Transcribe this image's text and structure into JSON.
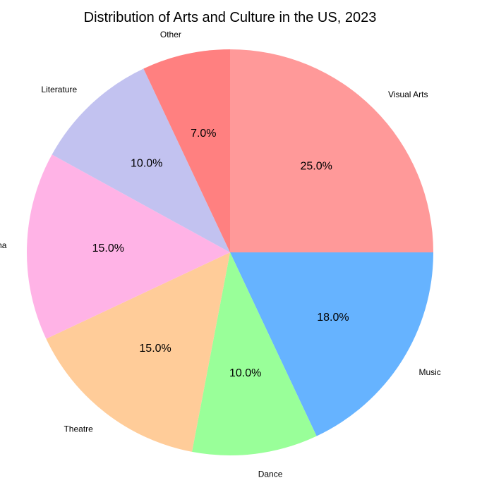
{
  "chart_data": {
    "type": "pie",
    "title": "Distribution of Arts and Culture in the US, 2023",
    "categories": [
      "Visual Arts",
      "Music",
      "Dance",
      "Theatre",
      "Cinema",
      "Literature",
      "Other"
    ],
    "values": [
      25.0,
      18.0,
      10.0,
      15.0,
      15.0,
      10.0,
      7.0
    ],
    "percent_labels": [
      "25.0%",
      "18.0%",
      "10.0%",
      "15.0%",
      "15.0%",
      "10.0%",
      "7.0%"
    ],
    "colors": [
      "#ff9999",
      "#66b3ff",
      "#99ff99",
      "#ffcc99",
      "#ffb3e6",
      "#c2c2f0",
      "#ff8080"
    ],
    "start_angle_deg": 90,
    "direction": "clockwise",
    "legend": "none"
  }
}
